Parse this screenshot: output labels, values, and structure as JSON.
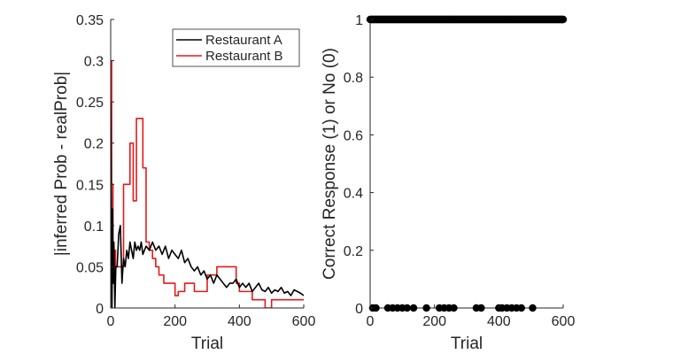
{
  "chart_data": [
    {
      "type": "line",
      "title": "",
      "xlabel": "Trial",
      "ylabel": "|inferred Prob - realProb|",
      "xlim": [
        0,
        600
      ],
      "ylim": [
        0,
        0.35
      ],
      "xticks": [
        "0",
        "200",
        "400",
        "600"
      ],
      "yticks": [
        "0",
        "0.05",
        "0.1",
        "0.15",
        "0.2",
        "0.25",
        "0.3",
        "0.35"
      ],
      "grid": false,
      "legend_position": "top-right",
      "series": [
        {
          "name": "Restaurant A",
          "color": "#000000",
          "step": false,
          "x": [
            0,
            2,
            4,
            6,
            8,
            10,
            13,
            16,
            20,
            25,
            30,
            35,
            40,
            45,
            50,
            55,
            60,
            65,
            70,
            75,
            80,
            85,
            90,
            95,
            100,
            110,
            120,
            130,
            140,
            150,
            160,
            170,
            180,
            190,
            200,
            210,
            220,
            230,
            240,
            250,
            260,
            270,
            280,
            290,
            300,
            310,
            320,
            330,
            340,
            350,
            360,
            370,
            380,
            390,
            400,
            410,
            420,
            430,
            440,
            450,
            460,
            470,
            480,
            490,
            500,
            510,
            520,
            530,
            540,
            550,
            560,
            570,
            580,
            590,
            600
          ],
          "values": [
            0.25,
            0.13,
            0.0,
            0.12,
            0.03,
            0.08,
            0.0,
            0.05,
            0.05,
            0.09,
            0.1,
            0.03,
            0.06,
            0.05,
            0.07,
            0.06,
            0.08,
            0.07,
            0.06,
            0.08,
            0.07,
            0.075,
            0.07,
            0.08,
            0.065,
            0.075,
            0.07,
            0.08,
            0.07,
            0.075,
            0.065,
            0.075,
            0.06,
            0.07,
            0.065,
            0.06,
            0.07,
            0.055,
            0.06,
            0.05,
            0.045,
            0.05,
            0.04,
            0.045,
            0.035,
            0.04,
            0.03,
            0.04,
            0.035,
            0.03,
            0.025,
            0.03,
            0.03,
            0.035,
            0.025,
            0.03,
            0.025,
            0.03,
            0.02,
            0.025,
            0.03,
            0.022,
            0.02,
            0.025,
            0.018,
            0.022,
            0.02,
            0.025,
            0.018,
            0.02,
            0.015,
            0.022,
            0.02,
            0.018,
            0.015
          ]
        },
        {
          "name": "Restaurant B",
          "color": "#e31a1c",
          "step": true,
          "x": [
            0,
            3,
            7,
            12,
            15,
            40,
            60,
            70,
            80,
            100,
            110,
            120,
            130,
            140,
            150,
            165,
            200,
            210,
            230,
            260,
            300,
            330,
            350,
            390,
            400,
            440,
            480,
            500,
            520,
            600
          ],
          "values": [
            0.3,
            0.15,
            0.05,
            0.07,
            0.05,
            0.15,
            0.2,
            0.13,
            0.23,
            0.17,
            0.08,
            0.07,
            0.06,
            0.05,
            0.04,
            0.03,
            0.015,
            0.02,
            0.03,
            0.02,
            0.04,
            0.05,
            0.05,
            0.03,
            0.02,
            0.01,
            0.0,
            0.01,
            0.01,
            0.01
          ]
        }
      ]
    },
    {
      "type": "scatter",
      "title": "",
      "xlabel": "Trial",
      "ylabel": "Correct Response (1) or No (0)",
      "xlim": [
        0,
        600
      ],
      "ylim": [
        0,
        1
      ],
      "xticks": [
        "0",
        "200",
        "400",
        "600"
      ],
      "yticks": [
        "0",
        "0.2",
        "0.4",
        "0.6",
        "0.8",
        "1"
      ],
      "grid": false,
      "series": [
        {
          "color": "#000000",
          "x": [
            8,
            18,
            55,
            70,
            85,
            100,
            115,
            135,
            175,
            215,
            230,
            245,
            260,
            330,
            345,
            400,
            410,
            425,
            440,
            455,
            470,
            505
          ],
          "values": [
            0,
            0,
            0,
            0,
            0,
            0,
            0,
            0,
            0,
            0,
            0,
            0,
            0,
            0,
            0,
            0,
            0,
            0,
            0,
            0,
            0,
            0
          ]
        },
        {
          "color": "#000000",
          "x_range": [
            0,
            600
          ],
          "x_step": 2,
          "value": 1
        }
      ]
    }
  ]
}
